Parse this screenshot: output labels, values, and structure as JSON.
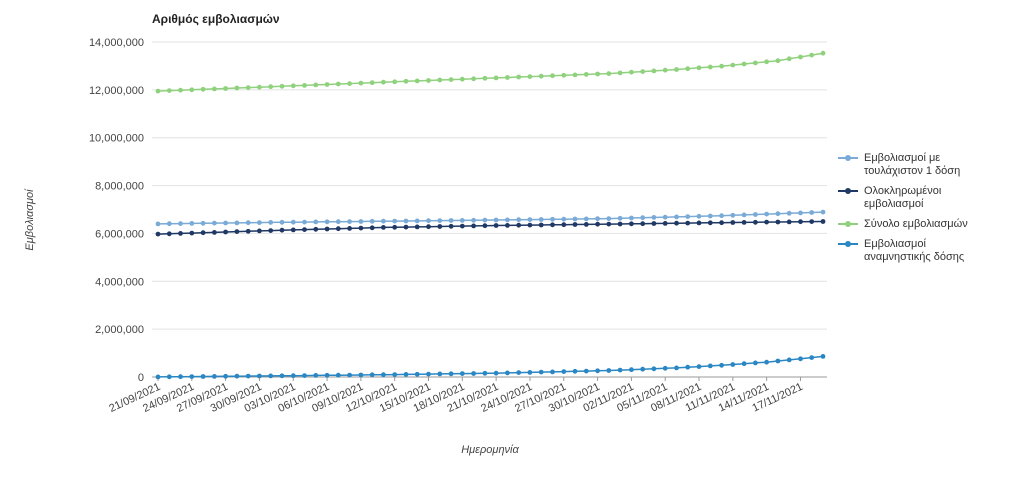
{
  "chart_data": {
    "type": "line",
    "title": "Αριθμός εμβολιασμών",
    "xlabel": "Ημερομηνία",
    "ylabel": "Εμβολιασμοί",
    "ylim": [
      0,
      14000000
    ],
    "yticks": [
      0,
      2000000,
      4000000,
      6000000,
      8000000,
      10000000,
      12000000,
      14000000
    ],
    "ytick_labels": [
      "0",
      "2,000,000",
      "4,000,000",
      "6,000,000",
      "8,000,000",
      "10,000,000",
      "12,000,000",
      "14,000,000"
    ],
    "x_start": "21/09/2021",
    "x_end": "19/11/2021",
    "xtick_labels": [
      "21/09/2021",
      "24/09/2021",
      "27/09/2021",
      "30/09/2021",
      "03/10/2021",
      "06/10/2021",
      "09/10/2021",
      "12/10/2021",
      "15/10/2021",
      "18/10/2021",
      "21/10/2021",
      "24/10/2021",
      "27/10/2021",
      "30/10/2021",
      "02/11/2021",
      "05/11/2021",
      "08/11/2021",
      "11/11/2021",
      "14/11/2021",
      "17/11/2021"
    ],
    "grid": true,
    "legend_position": "right",
    "series": [
      {
        "name": "Εμβολιασμοί με τουλάχιστον 1 δόση",
        "color": "#7aaad6",
        "anchors": [
          [
            0,
            6400000
          ],
          [
            10,
            6460000
          ],
          [
            20,
            6510000
          ],
          [
            30,
            6560000
          ],
          [
            40,
            6620000
          ],
          [
            50,
            6740000
          ],
          [
            59,
            6890000
          ]
        ]
      },
      {
        "name": "Ολοκληρωμένοι εμβολιασμοί",
        "color": "#1f3864",
        "anchors": [
          [
            0,
            5970000
          ],
          [
            10,
            6120000
          ],
          [
            20,
            6250000
          ],
          [
            30,
            6330000
          ],
          [
            40,
            6390000
          ],
          [
            50,
            6450000
          ],
          [
            59,
            6500000
          ]
        ]
      },
      {
        "name": "Σύνολο εμβολιασμών",
        "color": "#8fd17d",
        "anchors": [
          [
            0,
            11950000
          ],
          [
            10,
            12130000
          ],
          [
            20,
            12320000
          ],
          [
            30,
            12500000
          ],
          [
            40,
            12680000
          ],
          [
            46,
            12850000
          ],
          [
            50,
            12990000
          ],
          [
            55,
            13220000
          ],
          [
            59,
            13530000
          ]
        ]
      },
      {
        "name": "Εμβολιασμοί αναμνηστικής δόσης",
        "color": "#2a87c4",
        "anchors": [
          [
            0,
            5000
          ],
          [
            10,
            45000
          ],
          [
            20,
            95000
          ],
          [
            30,
            160000
          ],
          [
            40,
            270000
          ],
          [
            46,
            380000
          ],
          [
            50,
            490000
          ],
          [
            54,
            620000
          ],
          [
            57,
            760000
          ],
          [
            59,
            860000
          ]
        ]
      }
    ]
  }
}
